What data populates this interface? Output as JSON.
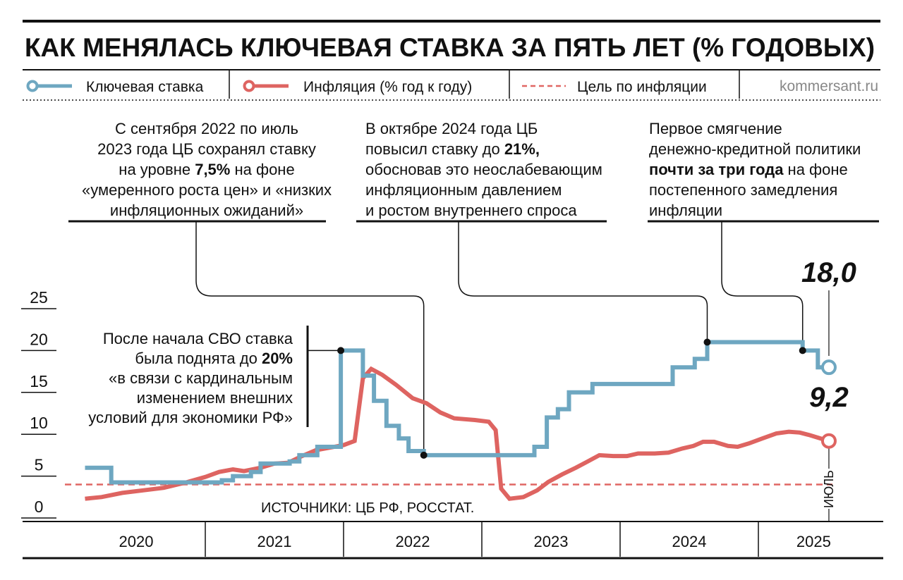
{
  "chart_data": {
    "type": "line",
    "title": "КАК МЕНЯЛАСЬ КЛЮЧЕВАЯ СТАВКА ЗА ПЯТЬ ЛЕТ (% ГОДОВЫХ)",
    "source_site": "kommersant.ru",
    "sources": "ИСТОЧНИКИ: ЦБ РФ, РОССТАТ.",
    "x_end_label": "ИЮЛЬ",
    "xlim": [
      2020,
      2025.8
    ],
    "xticks": [
      2020,
      2021,
      2022,
      2023,
      2024,
      2025
    ],
    "ylim": [
      0,
      25
    ],
    "yticks": [
      0,
      5,
      10,
      15,
      20,
      25
    ],
    "target": {
      "name": "Цель по инфляции",
      "value": 4,
      "color": "#e06663"
    },
    "series": [
      {
        "name": "Ключевая ставка",
        "color": "#6ea7c1",
        "end_label": "18,0",
        "x": [
          2020.13,
          2020.32,
          2020.32,
          2021.12,
          2021.12,
          2021.2,
          2021.2,
          2021.33,
          2021.33,
          2021.4,
          2021.4,
          2021.61,
          2021.61,
          2021.68,
          2021.68,
          2021.81,
          2021.81,
          2021.98,
          2021.98,
          2022.14,
          2022.14,
          2022.22,
          2022.22,
          2022.31,
          2022.31,
          2022.4,
          2022.4,
          2022.47,
          2022.47,
          2022.58,
          2022.58,
          2023.38,
          2023.38,
          2023.47,
          2023.47,
          2023.55,
          2023.55,
          2023.63,
          2023.63,
          2023.8,
          2023.8,
          2024.38,
          2024.38,
          2024.54,
          2024.54,
          2024.63,
          2024.63,
          2025.32,
          2025.32,
          2025.43,
          2025.43,
          2025.51
        ],
        "values": [
          6,
          6,
          4.25,
          4.25,
          4.5,
          4.5,
          5,
          5,
          5.5,
          5.5,
          6.5,
          6.5,
          6.75,
          6.75,
          7.5,
          7.5,
          8.5,
          8.5,
          20,
          20,
          17,
          17,
          14,
          14,
          11,
          11,
          9.5,
          9.5,
          8,
          8,
          7.5,
          7.5,
          8.5,
          8.5,
          12,
          12,
          13,
          13,
          15,
          15,
          16,
          16,
          18,
          18,
          19,
          19,
          21,
          21,
          20,
          20,
          18,
          18
        ]
      },
      {
        "name": "Инфляция (% год к году)",
        "color": "#de6461",
        "end_label": "9,2",
        "x": [
          2020.13,
          2020.25,
          2020.4,
          2020.55,
          2020.7,
          2020.85,
          2021.0,
          2021.1,
          2021.2,
          2021.28,
          2021.4,
          2021.5,
          2021.6,
          2021.7,
          2021.8,
          2021.9,
          2022.0,
          2022.08,
          2022.14,
          2022.2,
          2022.28,
          2022.38,
          2022.5,
          2022.6,
          2022.7,
          2022.8,
          2022.95,
          2023.05,
          2023.1,
          2023.14,
          2023.2,
          2023.3,
          2023.4,
          2023.48,
          2023.58,
          2023.68,
          2023.76,
          2023.85,
          2023.95,
          2024.05,
          2024.13,
          2024.25,
          2024.35,
          2024.45,
          2024.53,
          2024.6,
          2024.68,
          2024.78,
          2024.85,
          2024.93,
          2025.03,
          2025.13,
          2025.22,
          2025.3,
          2025.37,
          2025.43,
          2025.51
        ],
        "values": [
          2.3,
          2.5,
          3.0,
          3.3,
          3.6,
          4.2,
          4.9,
          5.5,
          5.8,
          5.6,
          6.0,
          6.5,
          6.6,
          7.4,
          8.1,
          8.4,
          8.7,
          9.2,
          16.7,
          17.8,
          17.1,
          15.9,
          14.3,
          13.7,
          12.6,
          11.9,
          11.7,
          11.5,
          10.5,
          3.5,
          2.3,
          2.5,
          3.3,
          4.3,
          5.2,
          6.0,
          6.7,
          7.5,
          7.4,
          7.4,
          7.7,
          7.7,
          7.8,
          8.3,
          8.6,
          9.1,
          9.1,
          8.6,
          8.5,
          8.9,
          9.5,
          10.1,
          10.3,
          10.2,
          9.9,
          9.6,
          9.2
        ]
      }
    ],
    "annotations": [
      {
        "x": 2022.58,
        "y": 7.5,
        "lines": [
          [
            "С сентября 2022 по июль"
          ],
          [
            "2023 года ЦБ сохранял ставку"
          ],
          [
            "на уровне ",
            "7,5%",
            " на фоне"
          ],
          [
            "«умеренного роста цен» и «низких"
          ],
          [
            "инфляционных ожиданий»"
          ]
        ]
      },
      {
        "x": 2024.63,
        "y": 21,
        "lines": [
          [
            "В октябре 2024 года ЦБ"
          ],
          [
            "повысил ставку до ",
            "21%,"
          ],
          [
            "обосновав это неослабевающим"
          ],
          [
            "инфляционным давлением"
          ],
          [
            "и ростом внутреннего спроса"
          ]
        ]
      },
      {
        "x": 2025.32,
        "y": 20,
        "lines": [
          [
            "Первое смягчение"
          ],
          [
            "денежно-кредитной политики"
          ],
          [
            "",
            "почти за три года",
            " на фоне"
          ],
          [
            "постепенного замедления"
          ],
          [
            "инфляции"
          ]
        ]
      },
      {
        "x": 2021.98,
        "y": 20,
        "lines": [
          [
            "После начала СВО ставка"
          ],
          [
            "была поднята до ",
            "20%"
          ],
          [
            "«в связи с кардинальным"
          ],
          [
            "изменением внешних"
          ],
          [
            "условий для экономики РФ»"
          ]
        ]
      }
    ]
  }
}
